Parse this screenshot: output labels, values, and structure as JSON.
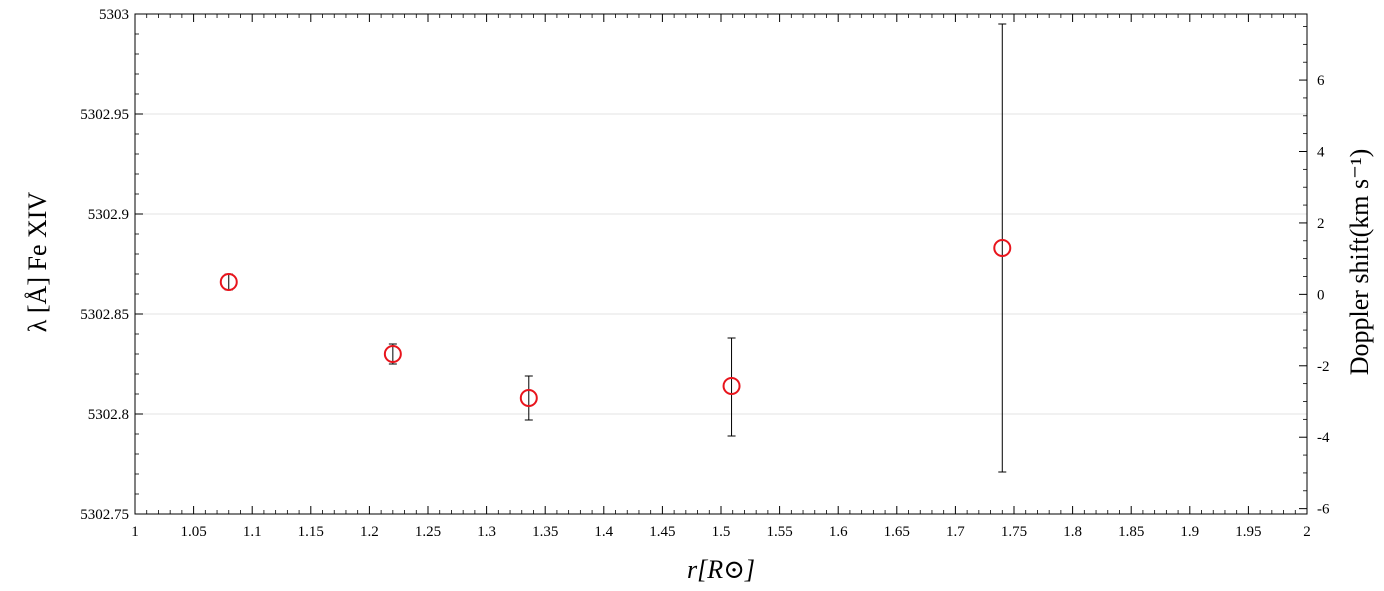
{
  "chart_data": {
    "type": "scatter",
    "xlabel": "r[R⊙]",
    "ylabel": "λ [Å] Fe XIV",
    "y2label": "Doppler shift(km s⁻¹)",
    "xlim": [
      1,
      2
    ],
    "ylim": [
      5302.75,
      5303
    ],
    "y2lim": [
      -6.15,
      7.85
    ],
    "grid": "horizontal",
    "marker": "open-circle",
    "colors": {
      "marker": "#e8141c",
      "errorbar": "#000000",
      "grid": "#e3e3e3"
    },
    "x_ticks": [
      "1",
      "1.05",
      "1.1",
      "1.15",
      "1.2",
      "1.25",
      "1.3",
      "1.35",
      "1.4",
      "1.45",
      "1.5",
      "1.55",
      "1.6",
      "1.65",
      "1.7",
      "1.75",
      "1.8",
      "1.85",
      "1.9",
      "1.95",
      "2"
    ],
    "y_ticks": [
      "5302.75",
      "5302.8",
      "5302.85",
      "5302.9",
      "5302.95",
      "5303"
    ],
    "y2_ticks": [
      "-6",
      "-4",
      "-2",
      "0",
      "2",
      "4",
      "6"
    ],
    "points": [
      {
        "x": 1.08,
        "y": 5302.866,
        "err_low": 5302.862,
        "err_high": 5302.87
      },
      {
        "x": 1.22,
        "y": 5302.83,
        "err_low": 5302.825,
        "err_high": 5302.835
      },
      {
        "x": 1.336,
        "y": 5302.808,
        "err_low": 5302.797,
        "err_high": 5302.819
      },
      {
        "x": 1.509,
        "y": 5302.814,
        "err_low": 5302.789,
        "err_high": 5302.838
      },
      {
        "x": 1.74,
        "y": 5302.883,
        "err_low": 5302.771,
        "err_high": 5302.995
      }
    ]
  }
}
